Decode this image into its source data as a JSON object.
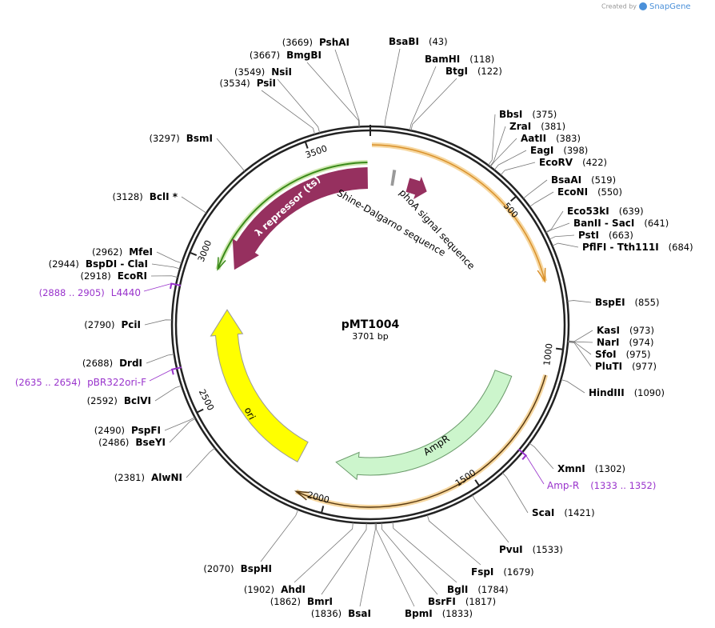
{
  "header": {
    "credit": "Created by",
    "brand": "SnapGene"
  },
  "map": {
    "name": "pMT1004",
    "length": {
      "value": 3701,
      "label": "3701 bp"
    },
    "ticks": [
      500,
      1000,
      1500,
      2000,
      2500,
      3000,
      3500
    ],
    "sites": [
      {
        "name": "PshAI",
        "pos": {
          "value": 3669,
          "label": "(3669)"
        }
      },
      {
        "name": "BmgBI",
        "pos": {
          "value": 3667,
          "label": "(3667)"
        }
      },
      {
        "name": "NsiI",
        "pos": {
          "value": 3549,
          "label": "(3549)"
        }
      },
      {
        "name": "PsiI",
        "pos": {
          "value": 3534,
          "label": "(3534)"
        }
      },
      {
        "name": "BsmI",
        "pos": {
          "value": 3297,
          "label": "(3297)"
        }
      },
      {
        "name": "BclI *",
        "pos": {
          "value": 3128,
          "label": "(3128)"
        }
      },
      {
        "name": "MfeI",
        "pos": {
          "value": 2962,
          "label": "(2962)"
        }
      },
      {
        "name": "BspDI - ClaI",
        "pos": {
          "value": 2944,
          "label": "(2944)"
        }
      },
      {
        "name": "EcoRI",
        "pos": {
          "value": 2918,
          "label": "(2918)"
        }
      },
      {
        "name": "PciI",
        "pos": {
          "value": 2790,
          "label": "(2790)"
        }
      },
      {
        "name": "DrdI",
        "pos": {
          "value": 2688,
          "label": "(2688)"
        }
      },
      {
        "name": "BclVI",
        "pos": {
          "value": 2592,
          "label": "(2592)"
        }
      },
      {
        "name": "PspFI",
        "pos": {
          "value": 2490,
          "label": "(2490)"
        }
      },
      {
        "name": "BseYI",
        "pos": {
          "value": 2486,
          "label": "(2486)"
        }
      },
      {
        "name": "AlwNI",
        "pos": {
          "value": 2381,
          "label": "(2381)"
        }
      },
      {
        "name": "BspHI",
        "pos": {
          "value": 2070,
          "label": "(2070)"
        }
      },
      {
        "name": "AhdI",
        "pos": {
          "value": 1902,
          "label": "(1902)"
        }
      },
      {
        "name": "BmrI",
        "pos": {
          "value": 1862,
          "label": "(1862)"
        }
      },
      {
        "name": "BsaI",
        "pos": {
          "value": 1836,
          "label": "(1836)"
        }
      },
      {
        "name": "BsaBI",
        "pos": {
          "value": 43,
          "label": "(43)"
        }
      },
      {
        "name": "BamHI",
        "pos": {
          "value": 118,
          "label": "(118)"
        }
      },
      {
        "name": "BtgI",
        "pos": {
          "value": 122,
          "label": "(122)"
        }
      },
      {
        "name": "BbsI",
        "pos": {
          "value": 375,
          "label": "(375)"
        }
      },
      {
        "name": "ZraI",
        "pos": {
          "value": 381,
          "label": "(381)"
        }
      },
      {
        "name": "AatII",
        "pos": {
          "value": 383,
          "label": "(383)"
        }
      },
      {
        "name": "EagI",
        "pos": {
          "value": 398,
          "label": "(398)"
        }
      },
      {
        "name": "EcoRV",
        "pos": {
          "value": 422,
          "label": "(422)"
        }
      },
      {
        "name": "BsaAI",
        "pos": {
          "value": 519,
          "label": "(519)"
        }
      },
      {
        "name": "EcoNI",
        "pos": {
          "value": 550,
          "label": "(550)"
        }
      },
      {
        "name": "Eco53kI",
        "pos": {
          "value": 639,
          "label": "(639)"
        }
      },
      {
        "name": "BanII  -  SacI",
        "pos": {
          "value": 641,
          "label": "(641)"
        }
      },
      {
        "name": "PstI",
        "pos": {
          "value": 663,
          "label": "(663)"
        }
      },
      {
        "name": "PflFI  -  Tth111I",
        "pos": {
          "value": 684,
          "label": "(684)"
        }
      },
      {
        "name": "BspEI",
        "pos": {
          "value": 855,
          "label": "(855)"
        }
      },
      {
        "name": "KasI",
        "pos": {
          "value": 973,
          "label": "(973)"
        }
      },
      {
        "name": "NarI",
        "pos": {
          "value": 974,
          "label": "(974)"
        }
      },
      {
        "name": "SfoI",
        "pos": {
          "value": 975,
          "label": "(975)"
        }
      },
      {
        "name": "PluTI",
        "pos": {
          "value": 977,
          "label": "(977)"
        }
      },
      {
        "name": "HindIII",
        "pos": {
          "value": 1090,
          "label": "(1090)"
        }
      },
      {
        "name": "XmnI",
        "pos": {
          "value": 1302,
          "label": "(1302)"
        }
      },
      {
        "name": "ScaI",
        "pos": {
          "value": 1421,
          "label": "(1421)"
        }
      },
      {
        "name": "PvuI",
        "pos": {
          "value": 1533,
          "label": "(1533)"
        }
      },
      {
        "name": "FspI",
        "pos": {
          "value": 1679,
          "label": "(1679)"
        }
      },
      {
        "name": "BglI",
        "pos": {
          "value": 1784,
          "label": "(1784)"
        }
      },
      {
        "name": "BsrFI",
        "pos": {
          "value": 1817,
          "label": "(1817)"
        }
      },
      {
        "name": "BpmI",
        "pos": {
          "value": 1833,
          "label": "(1833)"
        }
      }
    ],
    "primers": [
      {
        "name": "L4440",
        "range": "(2888 .. 2905)"
      },
      {
        "name": "pBR322ori-F",
        "range": "(2635 .. 2654)"
      },
      {
        "name": "Amp-R",
        "range": "(1333 .. 1352)"
      }
    ],
    "features": [
      "λ repressor (ts)",
      "phoA signal sequence",
      "Shine-Dalgarno sequence",
      "AmpR",
      "ori"
    ]
  }
}
